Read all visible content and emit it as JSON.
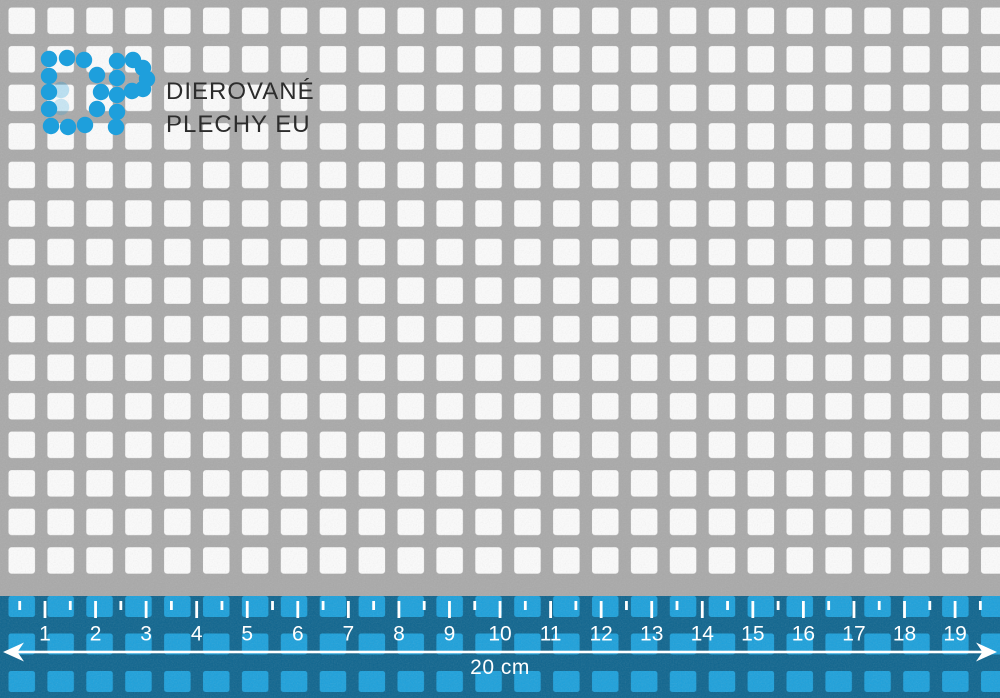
{
  "brand": {
    "line1": "DIEROVANÉ",
    "line2": "PLECHY EU"
  },
  "ruler": {
    "marks": [
      "1",
      "2",
      "3",
      "4",
      "5",
      "6",
      "7",
      "8",
      "9",
      "10",
      "11",
      "12",
      "13",
      "14",
      "15",
      "16",
      "17",
      "18",
      "19"
    ],
    "total_label": "20 cm"
  },
  "logo_dots": {
    "radius": 8.2,
    "d_letter": [
      [
        49,
        59
      ],
      [
        49,
        76
      ],
      [
        49,
        92
      ],
      [
        49,
        109
      ],
      [
        51,
        126
      ],
      [
        67,
        58
      ],
      [
        84,
        60
      ],
      [
        68,
        127
      ],
      [
        85,
        125
      ],
      [
        97,
        75
      ],
      [
        101,
        92
      ],
      [
        97,
        109
      ]
    ],
    "p_letter": [
      [
        117,
        61
      ],
      [
        117,
        78
      ],
      [
        117,
        95
      ],
      [
        117,
        112
      ],
      [
        116,
        127
      ],
      [
        133,
        60
      ],
      [
        143,
        68
      ],
      [
        147,
        79
      ],
      [
        143,
        89
      ],
      [
        132,
        91
      ]
    ],
    "ghost_dots": [
      [
        61,
        90,
        0.28
      ],
      [
        61,
        107,
        0.22
      ]
    ]
  },
  "colors": {
    "metal": "#a9a9a9",
    "hole": "#fcfcfc",
    "brand_blue": "#1e9fdc",
    "ruler_square": "#1ba0db",
    "ruler_bar": "#0d648e",
    "text_dark": "#2c2c2c",
    "white": "#ffffff"
  }
}
